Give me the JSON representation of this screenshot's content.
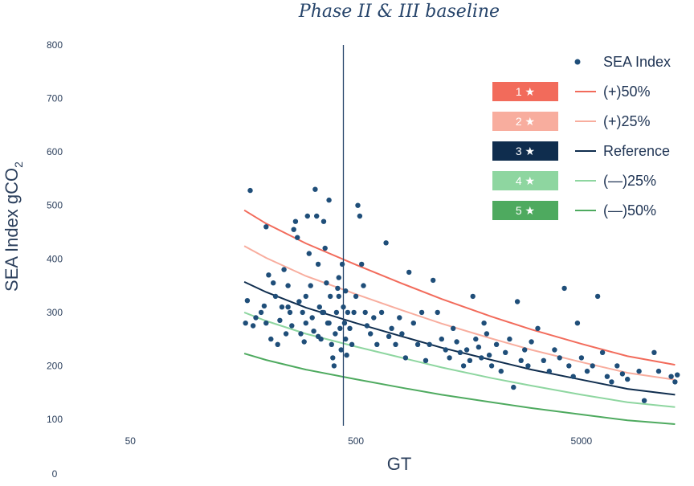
{
  "chart_data": {
    "type": "scatter",
    "title": "Phase II & III baseline",
    "xlabel": "GT",
    "ylabel": "SEA Index gCO",
    "ylabel_subscript": "2",
    "x_scale": "log",
    "xlim": [
      30,
      13500
    ],
    "ylim": [
      100,
      800
    ],
    "x_ticks": [
      {
        "value": 50,
        "label": "50"
      },
      {
        "value": 500,
        "label": "500"
      },
      {
        "value": 5000,
        "label": "5000"
      }
    ],
    "y_ticks": [
      {
        "value": 100,
        "label": "100"
      },
      {
        "value": 200,
        "label": "200"
      },
      {
        "value": 300,
        "label": "300"
      },
      {
        "value": 400,
        "label": "400"
      },
      {
        "value": 500,
        "label": "500"
      },
      {
        "value": 600,
        "label": "600"
      },
      {
        "value": 700,
        "label": "700"
      },
      {
        "value": 800,
        "label": "800"
      }
    ],
    "y_extra_label": "0",
    "vertical_line_x": 440,
    "legend_position": "top-right",
    "curve_x": [
      160,
      200,
      300,
      500,
      800,
      1200,
      2000,
      3000,
      5000,
      8000,
      13000
    ],
    "curves": [
      {
        "name": "(+)50%",
        "color": "#f26b5b",
        "values": [
          491,
          466,
          429,
          389,
          354,
          325,
          292,
          268,
          241,
          218,
          202
        ]
      },
      {
        "name": "(+)25%",
        "color": "#f8ad9e",
        "values": [
          424,
          402,
          368,
          334,
          304,
          279,
          251,
          230,
          207,
          187,
          174
        ]
      },
      {
        "name": "Reference",
        "color": "#0f2d4e",
        "values": [
          357,
          338,
          309,
          280,
          255,
          234,
          211,
          193,
          174,
          157,
          146
        ]
      },
      {
        "name": "(—)25%",
        "color": "#8ed6a0",
        "values": [
          300,
          284,
          260,
          236,
          215,
          197,
          177,
          163,
          146,
          132,
          123
        ]
      },
      {
        "name": "(—)50%",
        "color": "#4eaa5f",
        "values": [
          223,
          211,
          193,
          175,
          159,
          146,
          132,
          121,
          109,
          98,
          91
        ]
      }
    ],
    "scatter_series": {
      "name": "SEA Index",
      "color": "#1f4e79",
      "points": [
        [
          162,
          280
        ],
        [
          165,
          322
        ],
        [
          170,
          528
        ],
        [
          175,
          275
        ],
        [
          180,
          290
        ],
        [
          190,
          300
        ],
        [
          196,
          312
        ],
        [
          200,
          460
        ],
        [
          205,
          370
        ],
        [
          210,
          250
        ],
        [
          215,
          355
        ],
        [
          220,
          330
        ],
        [
          225,
          240
        ],
        [
          230,
          285
        ],
        [
          235,
          310
        ],
        [
          240,
          380
        ],
        [
          245,
          260
        ],
        [
          250,
          350
        ],
        [
          255,
          300
        ],
        [
          260,
          275
        ],
        [
          265,
          455
        ],
        [
          270,
          470
        ],
        [
          275,
          440
        ],
        [
          280,
          320
        ],
        [
          285,
          260
        ],
        [
          290,
          300
        ],
        [
          295,
          245
        ],
        [
          300,
          330
        ],
        [
          305,
          480
        ],
        [
          310,
          410
        ],
        [
          315,
          350
        ],
        [
          320,
          290
        ],
        [
          325,
          265
        ],
        [
          330,
          530
        ],
        [
          335,
          480
        ],
        [
          340,
          390
        ],
        [
          345,
          310
        ],
        [
          350,
          250
        ],
        [
          355,
          300
        ],
        [
          360,
          470
        ],
        [
          365,
          420
        ],
        [
          370,
          355
        ],
        [
          375,
          280
        ],
        [
          380,
          510
        ],
        [
          385,
          330
        ],
        [
          390,
          240
        ],
        [
          395,
          215
        ],
        [
          400,
          200
        ],
        [
          405,
          260
        ],
        [
          410,
          300
        ],
        [
          415,
          345
        ],
        [
          420,
          365
        ],
        [
          425,
          270
        ],
        [
          430,
          230
        ],
        [
          435,
          390
        ],
        [
          440,
          310
        ],
        [
          445,
          280
        ],
        [
          450,
          250
        ],
        [
          455,
          220
        ],
        [
          460,
          300
        ],
        [
          470,
          270
        ],
        [
          480,
          240
        ],
        [
          490,
          300
        ],
        [
          500,
          330
        ],
        [
          510,
          500
        ],
        [
          520,
          480
        ],
        [
          530,
          390
        ],
        [
          540,
          350
        ],
        [
          550,
          300
        ],
        [
          560,
          275
        ],
        [
          580,
          260
        ],
        [
          600,
          290
        ],
        [
          620,
          240
        ],
        [
          650,
          300
        ],
        [
          680,
          430
        ],
        [
          700,
          255
        ],
        [
          720,
          270
        ],
        [
          750,
          240
        ],
        [
          780,
          290
        ],
        [
          800,
          260
        ],
        [
          830,
          215
        ],
        [
          860,
          375
        ],
        [
          900,
          280
        ],
        [
          940,
          240
        ],
        [
          980,
          300
        ],
        [
          1020,
          210
        ],
        [
          1060,
          240
        ],
        [
          1100,
          360
        ],
        [
          1150,
          300
        ],
        [
          1200,
          250
        ],
        [
          1250,
          230
        ],
        [
          1300,
          215
        ],
        [
          1350,
          270
        ],
        [
          1400,
          245
        ],
        [
          1450,
          225
        ],
        [
          1500,
          200
        ],
        [
          1550,
          230
        ],
        [
          1600,
          210
        ],
        [
          1650,
          330
        ],
        [
          1700,
          250
        ],
        [
          1750,
          235
        ],
        [
          1800,
          215
        ],
        [
          1850,
          280
        ],
        [
          1900,
          260
        ],
        [
          1950,
          220
        ],
        [
          2000,
          200
        ],
        [
          2100,
          240
        ],
        [
          2200,
          190
        ],
        [
          2300,
          225
        ],
        [
          2400,
          250
        ],
        [
          2500,
          160
        ],
        [
          2600,
          320
        ],
        [
          2700,
          210
        ],
        [
          2800,
          230
        ],
        [
          2900,
          200
        ],
        [
          3000,
          245
        ],
        [
          3200,
          270
        ],
        [
          3400,
          210
        ],
        [
          3600,
          190
        ],
        [
          3800,
          230
        ],
        [
          4000,
          215
        ],
        [
          4200,
          345
        ],
        [
          4400,
          200
        ],
        [
          4600,
          180
        ],
        [
          4800,
          280
        ],
        [
          5000,
          215
        ],
        [
          5300,
          190
        ],
        [
          5600,
          200
        ],
        [
          5900,
          330
        ],
        [
          6200,
          225
        ],
        [
          6500,
          180
        ],
        [
          6800,
          170
        ],
        [
          7200,
          200
        ],
        [
          7600,
          185
        ],
        [
          8000,
          175
        ],
        [
          9000,
          190
        ],
        [
          9500,
          135
        ],
        [
          10500,
          225
        ],
        [
          11000,
          190
        ],
        [
          12500,
          180
        ],
        [
          13000,
          170
        ],
        [
          13300,
          183
        ],
        [
          340,
          255
        ],
        [
          360,
          300
        ],
        [
          380,
          280
        ],
        [
          420,
          330
        ],
        [
          450,
          340
        ],
        [
          300,
          280
        ],
        [
          250,
          310
        ],
        [
          200,
          280
        ]
      ]
    }
  },
  "legend_badges": [
    {
      "label": "1",
      "color": "#f26b5b"
    },
    {
      "label": "2",
      "color": "#f8ad9e"
    },
    {
      "label": "3",
      "color": "#0f2d4e"
    },
    {
      "label": "4",
      "color": "#8ed6a0"
    },
    {
      "label": "5",
      "color": "#4eaa5f"
    }
  ],
  "legend_star": "★"
}
